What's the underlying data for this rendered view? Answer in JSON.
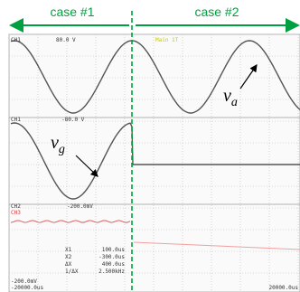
{
  "header": {
    "case1": "case #1",
    "case2": "case #2"
  },
  "annotations": {
    "va": {
      "symbol": "v",
      "sub": "a"
    },
    "vg": {
      "symbol": "v",
      "sub": "g"
    }
  },
  "scope": {
    "ch1": "CH1",
    "ch1_scale": "80.0 V",
    "trigger": "Main 1T",
    "ch1_marker": "CH1",
    "ch1_level": "-80.0 V",
    "ch2": "CH2",
    "ch2_scale": "-200.0mV",
    "ch3": "CH3",
    "cursors": [
      {
        "name": "X1",
        "value": "100.0us"
      },
      {
        "name": "X2",
        "value": "-300.0us"
      },
      {
        "name": "ΔX",
        "value": "400.0us"
      },
      {
        "name": "1/ΔX",
        "value": "2.500kHz"
      }
    ],
    "ch3_scale": "-200.0mV",
    "time_left": "-20000.0us",
    "time_right": "20000.0us"
  }
}
